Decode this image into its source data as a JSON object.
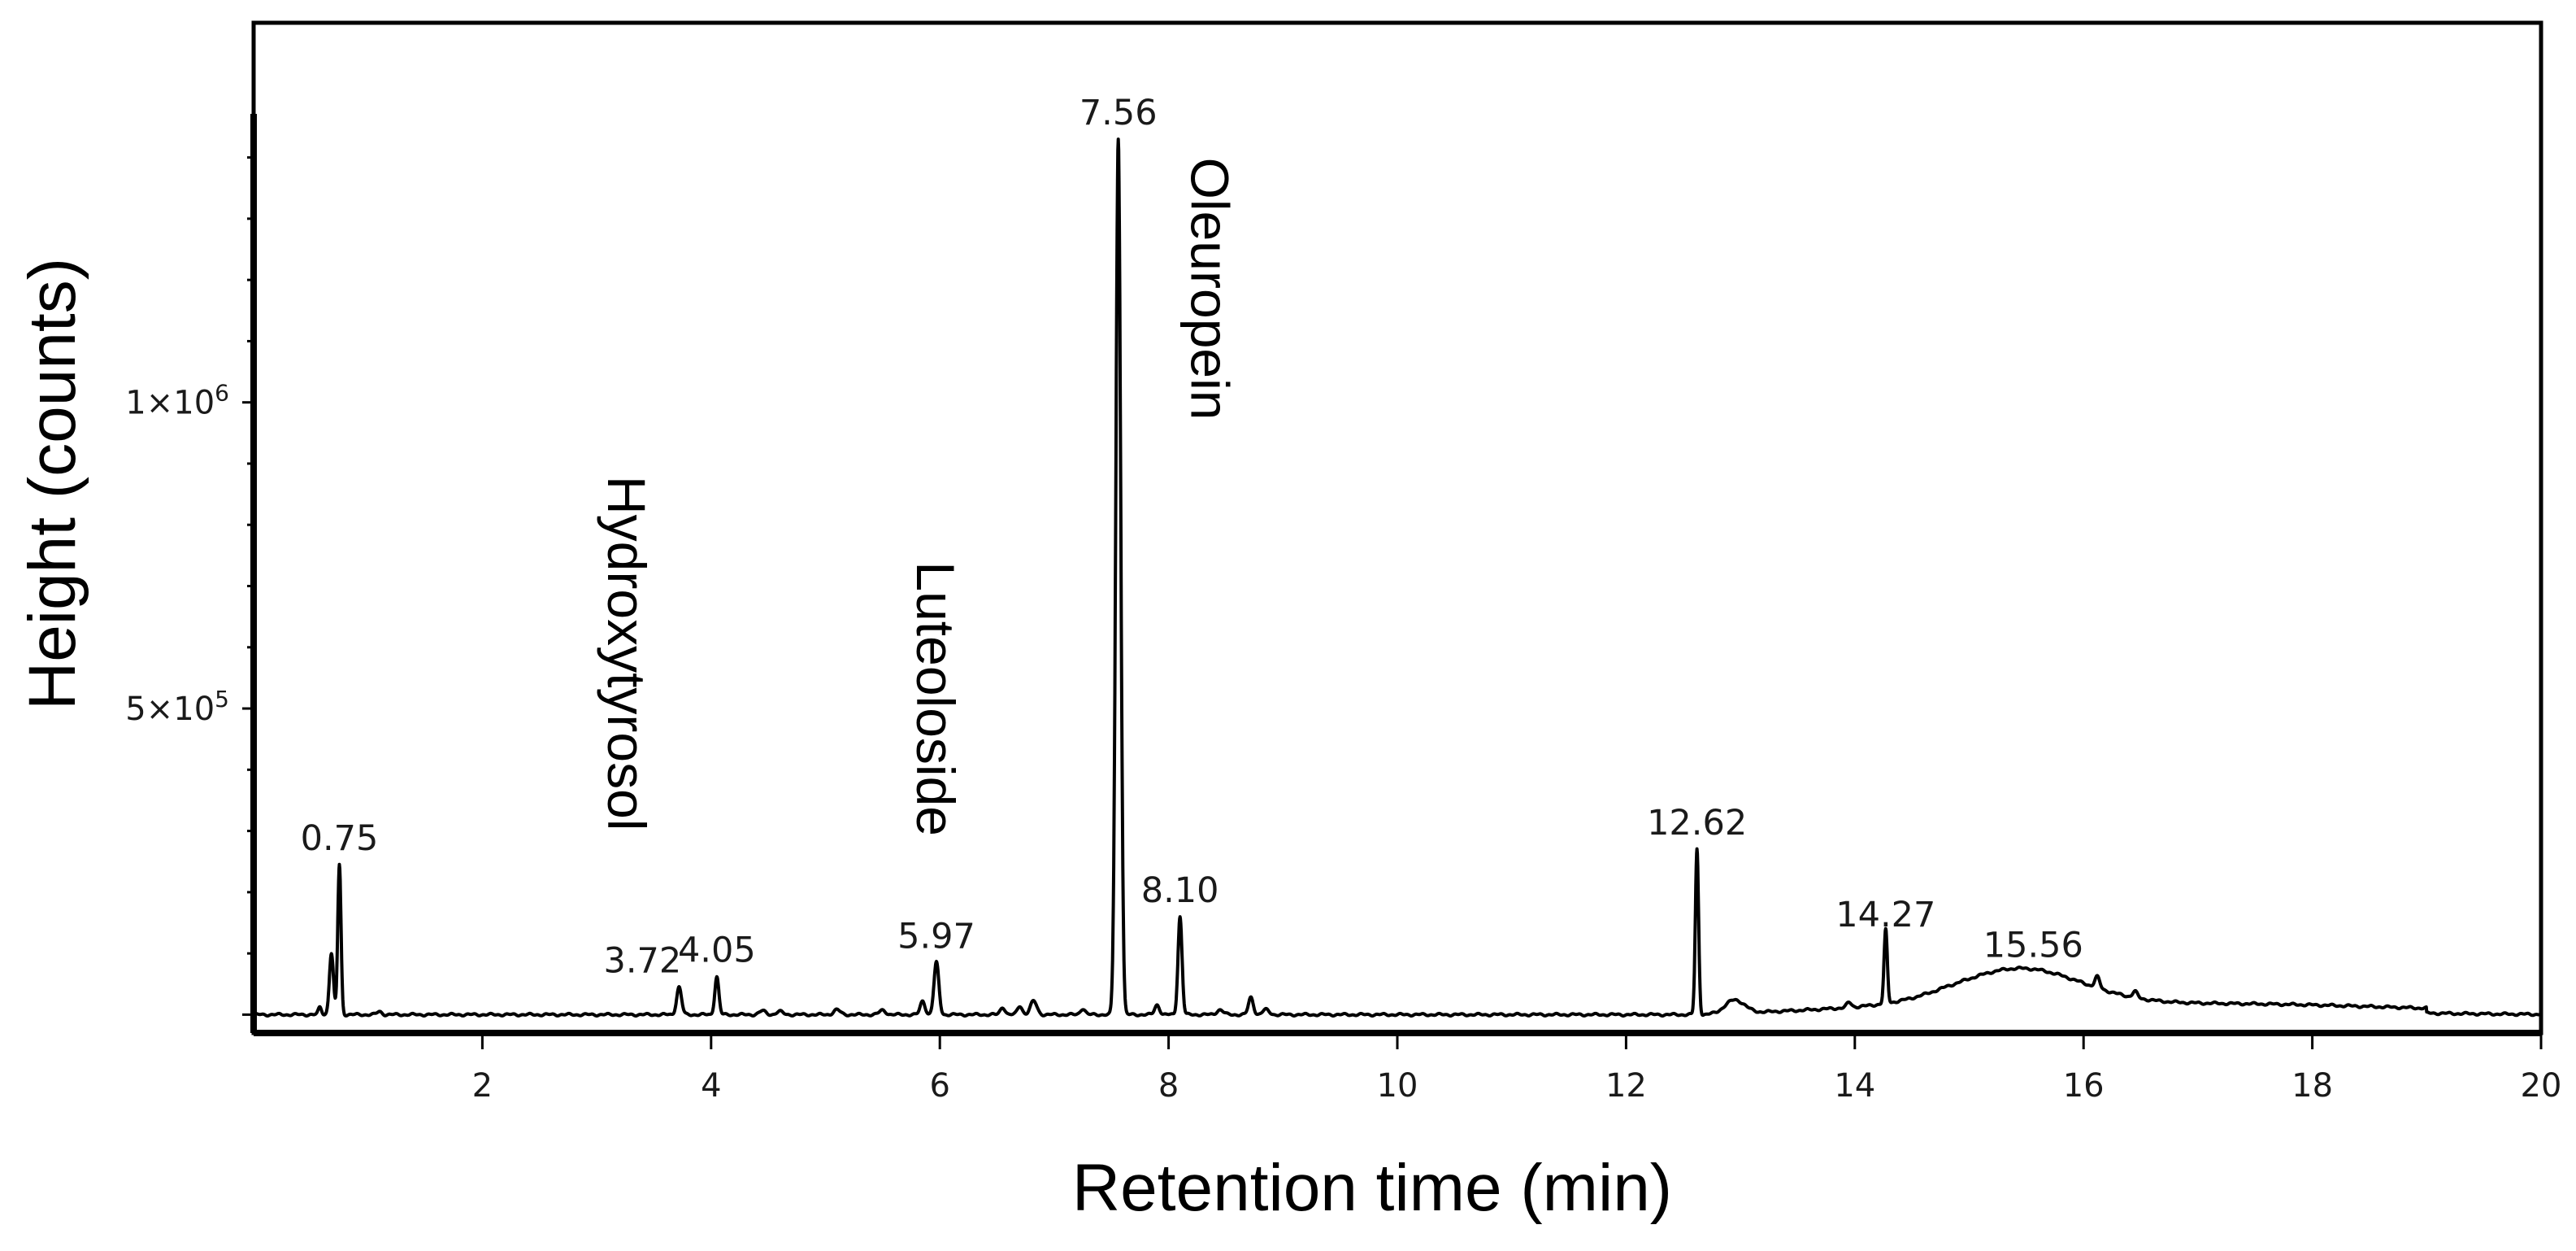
{
  "chart_data": {
    "type": "line",
    "xlabel": "Retention time (min)",
    "ylabel": "Height (counts)",
    "xlim": [
      0,
      20
    ],
    "ylim": [
      -30000,
      1620000
    ],
    "x_ticks": [
      2,
      4,
      6,
      8,
      10,
      12,
      14,
      16,
      18,
      20
    ],
    "x_tick_labels": [
      "2",
      "4",
      "6",
      "8",
      "10",
      "12",
      "14",
      "16",
      "18",
      "20"
    ],
    "y_tick_labels": [
      {
        "value": 1000000,
        "mantissa": "1×10",
        "exp": "6"
      },
      {
        "value": 500000,
        "mantissa": "5×10",
        "exp": "5"
      }
    ],
    "grid": false,
    "peaks": [
      {
        "x": 0.58,
        "y": 12000,
        "width": 0.02
      },
      {
        "x": 0.68,
        "y": 100000,
        "width": 0.025
      },
      {
        "x": 0.75,
        "y": 245000,
        "width": 0.02
      },
      {
        "x": 1.1,
        "y": 5000,
        "width": 0.03
      },
      {
        "x": 3.72,
        "y": 45000,
        "width": 0.03
      },
      {
        "x": 4.05,
        "y": 62000,
        "width": 0.025
      },
      {
        "x": 4.45,
        "y": 6000,
        "width": 0.04
      },
      {
        "x": 4.6,
        "y": 5000,
        "width": 0.04
      },
      {
        "x": 5.1,
        "y": 8000,
        "width": 0.04
      },
      {
        "x": 5.5,
        "y": 7000,
        "width": 0.04
      },
      {
        "x": 5.85,
        "y": 22000,
        "width": 0.03
      },
      {
        "x": 5.97,
        "y": 85000,
        "width": 0.03
      },
      {
        "x": 6.55,
        "y": 12000,
        "width": 0.03
      },
      {
        "x": 6.7,
        "y": 14000,
        "width": 0.03
      },
      {
        "x": 6.82,
        "y": 22000,
        "width": 0.04
      },
      {
        "x": 7.25,
        "y": 10000,
        "width": 0.03
      },
      {
        "x": 7.56,
        "y": 1430000,
        "width": 0.03
      },
      {
        "x": 7.9,
        "y": 16000,
        "width": 0.03
      },
      {
        "x": 8.1,
        "y": 160000,
        "width": 0.025
      },
      {
        "x": 8.45,
        "y": 8000,
        "width": 0.04
      },
      {
        "x": 8.72,
        "y": 28000,
        "width": 0.03
      },
      {
        "x": 8.85,
        "y": 8000,
        "width": 0.04
      },
      {
        "x": 12.62,
        "y": 270000,
        "width": 0.02
      },
      {
        "x": 12.95,
        "y": 22000,
        "width": 0.12
      },
      {
        "x": 13.95,
        "y": 8000,
        "width": 0.03
      },
      {
        "x": 14.27,
        "y": 120000,
        "width": 0.02
      },
      {
        "x": 16.12,
        "y": 18000,
        "width": 0.03
      },
      {
        "x": 16.45,
        "y": 10000,
        "width": 0.03
      }
    ],
    "humps": [
      {
        "x": 15.45,
        "y": 58000,
        "width": 0.75
      },
      {
        "x": 17.5,
        "y": 6000,
        "width": 1.6
      }
    ],
    "ramps": [
      {
        "from": 12.7,
        "to": 14.8,
        "y_from": 0,
        "y_to": 18000
      },
      {
        "from": 14.8,
        "to": 19.0,
        "y_from": 18000,
        "y_to": 8000
      }
    ],
    "peak_labels": [
      {
        "text": "0.75",
        "x": 0.75,
        "y": 245000
      },
      {
        "text": "3.72",
        "x": 3.4,
        "y": 45000
      },
      {
        "text": "4.05",
        "x": 4.05,
        "y": 62000
      },
      {
        "text": "5.97",
        "x": 5.97,
        "y": 85000
      },
      {
        "text": "7.56",
        "x": 7.56,
        "y": 1430000
      },
      {
        "text": "8.10",
        "x": 8.1,
        "y": 160000
      },
      {
        "text": "12.62",
        "x": 12.62,
        "y": 270000
      },
      {
        "text": "14.27",
        "x": 14.27,
        "y": 120000
      },
      {
        "text": "15.56",
        "x": 15.56,
        "y": 70000
      }
    ],
    "compound_labels": [
      {
        "text": "Hydroxytyrosol",
        "x": 3.1,
        "y": 880000
      },
      {
        "text": "Luteoloside",
        "x": 5.8,
        "y": 740000
      },
      {
        "text": "Oleuropein",
        "x": 8.2,
        "y": 1400000
      }
    ],
    "colors": {
      "line": "#000000",
      "axis": "#000000",
      "background": "#ffffff"
    }
  }
}
